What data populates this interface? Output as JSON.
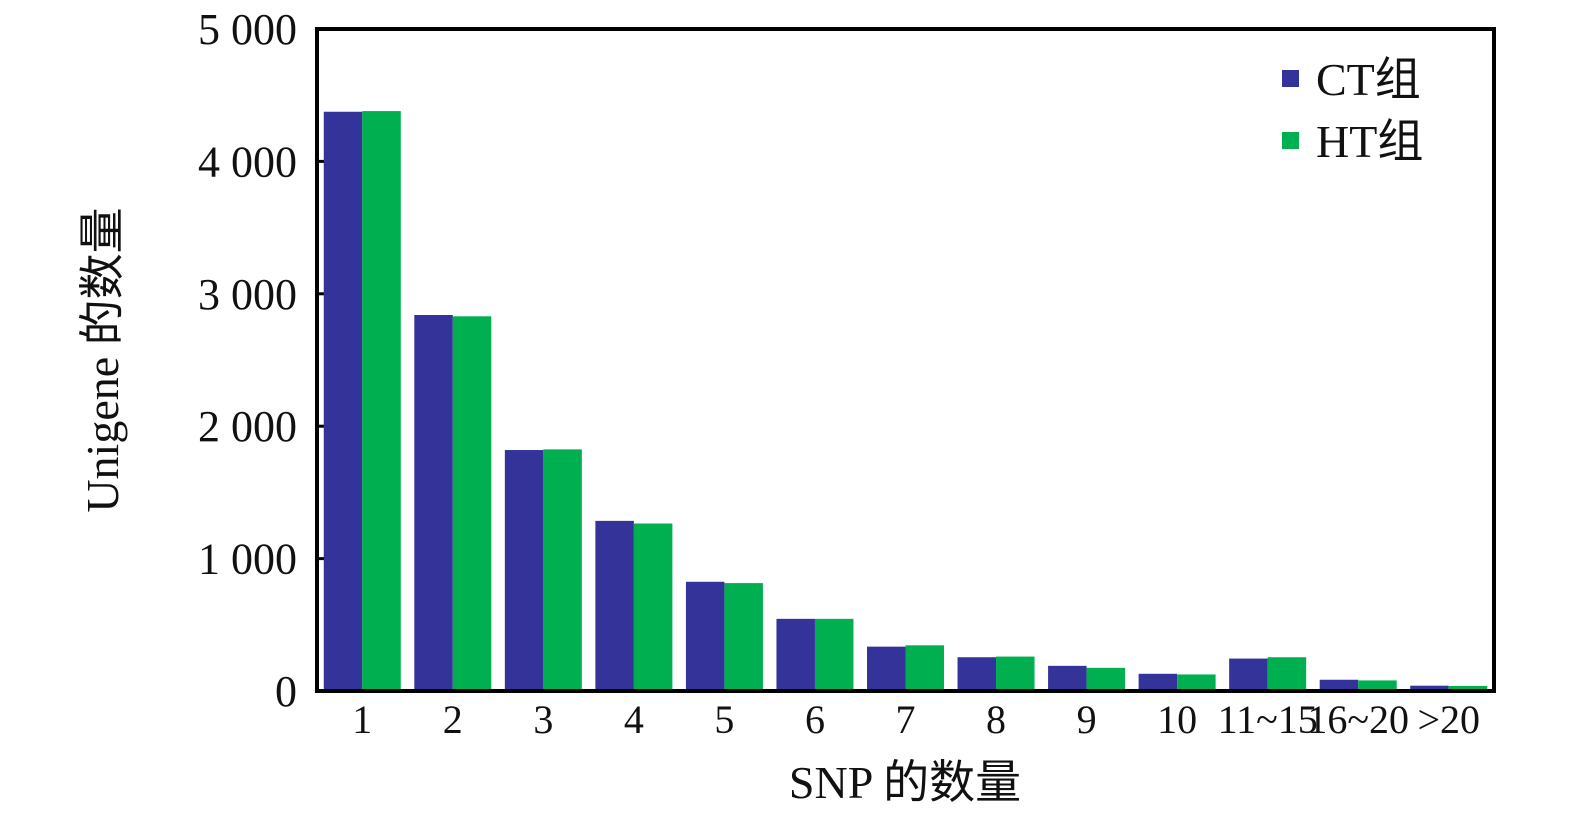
{
  "chart_data": {
    "type": "bar",
    "xlabel": "SNP 的数量",
    "ylabel": "Unigene 的数量",
    "ylim": [
      0,
      5000
    ],
    "yticks": [
      0,
      1000,
      2000,
      3000,
      4000,
      5000
    ],
    "ytick_labels": [
      "0",
      "1 000",
      "2 000",
      "3 000",
      "4 000",
      "5 000"
    ],
    "categories": [
      "1",
      "2",
      "3",
      "4",
      "5",
      "6",
      "7",
      "8",
      "9",
      "10",
      "11~15",
      "16~20",
      ">20"
    ],
    "series": [
      {
        "name": "CT组",
        "color": "#333399",
        "values": [
          4375,
          2840,
          1820,
          1285,
          825,
          545,
          335,
          255,
          190,
          130,
          245,
          85,
          40
        ]
      },
      {
        "name": "HT组",
        "color": "#00b050",
        "values": [
          4380,
          2830,
          1825,
          1265,
          815,
          545,
          345,
          260,
          175,
          125,
          255,
          80,
          38
        ]
      }
    ],
    "legend_position": "top-right",
    "grid": false
  }
}
